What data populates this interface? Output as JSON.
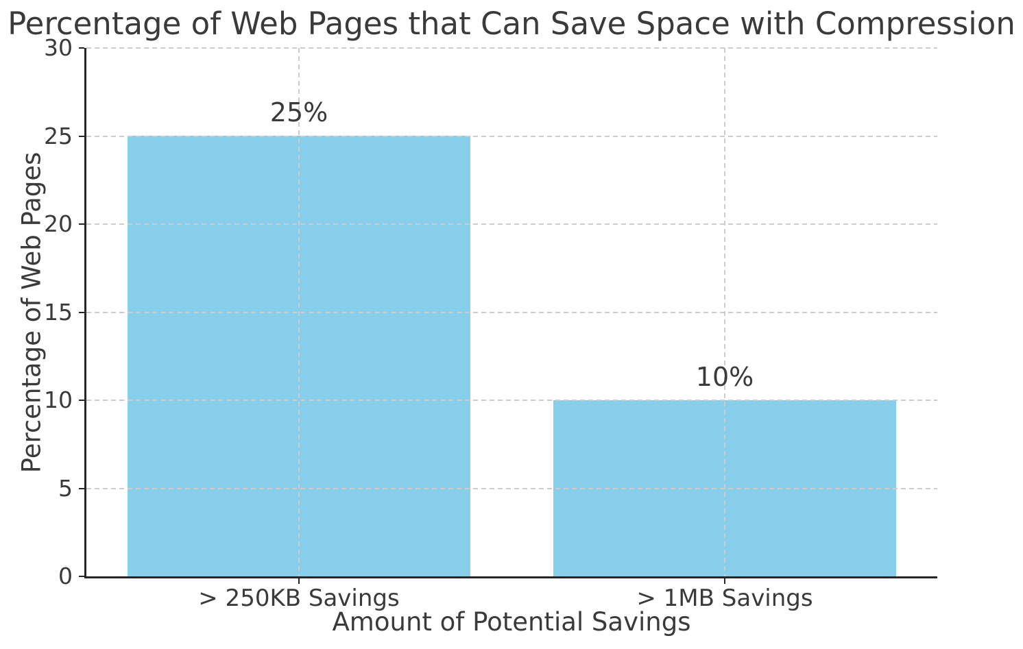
{
  "chart_data": {
    "type": "bar",
    "title": "Percentage of Web Pages that Can Save Space with Compression",
    "xlabel": "Amount of Potential Savings",
    "ylabel": "Percentage of Web Pages",
    "categories": [
      "> 250KB Savings",
      "> 1MB Savings"
    ],
    "values": [
      25,
      10
    ],
    "value_labels": [
      "25%",
      "10%"
    ],
    "ylim": [
      0,
      30
    ],
    "yticks": [
      0,
      5,
      10,
      15,
      20,
      25,
      30
    ],
    "grid": "dashed",
    "legend": "none",
    "bar_color": "#87CEEB",
    "grid_color": "#cccccc",
    "text_color": "#3a3a3a",
    "spine_color": "#262626"
  }
}
